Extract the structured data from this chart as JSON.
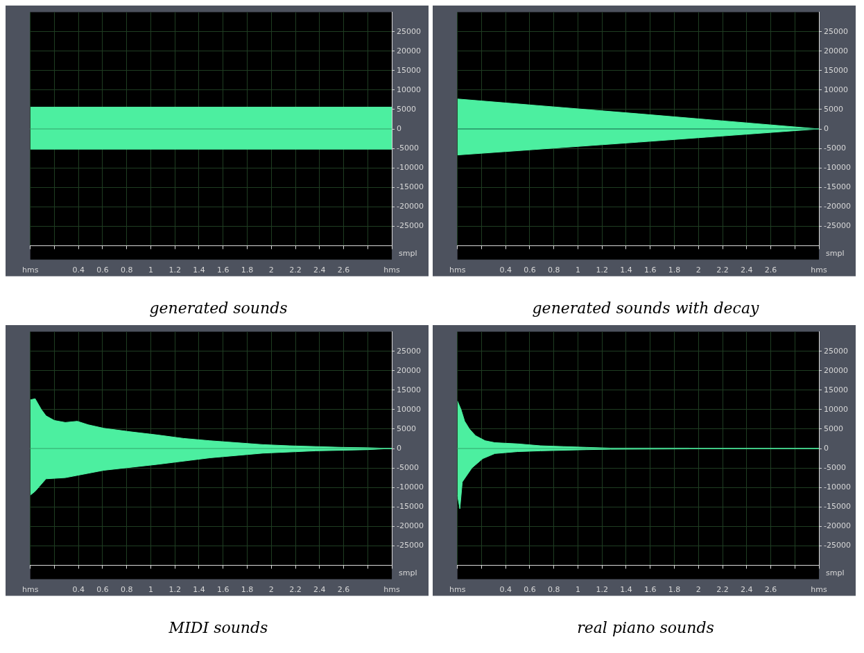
{
  "chart_data": [
    {
      "type": "area",
      "title": "generated sounds",
      "ylabel": "smpl",
      "xlim": [
        0,
        3
      ],
      "ylim": [
        -30000,
        30000
      ],
      "grid": true,
      "xticks": [
        {
          "value": 0,
          "label": "hms"
        },
        {
          "value": 0.2,
          "label": null
        },
        0.4,
        0.6,
        0.8,
        1.0,
        1.2,
        1.4,
        1.6,
        1.8,
        2.0,
        2.2,
        2.4,
        2.6,
        {
          "value": 2.8,
          "label": null
        },
        {
          "value": 3,
          "label": "hms"
        }
      ],
      "yticks": [
        -25000,
        -20000,
        -15000,
        -10000,
        -5000,
        0,
        5000,
        10000,
        15000,
        20000,
        25000
      ],
      "ref_lines": [
        {
          "axis": "y",
          "value": 0,
          "color": "#3fc985"
        }
      ],
      "series": [
        {
          "color": "#4cefa0",
          "x": [
            0,
            3
          ],
          "values": [
            5600,
            5600
          ]
        },
        {
          "color": "#4cefa0",
          "x": [
            0,
            3
          ],
          "values": [
            -5200,
            -5200
          ]
        }
      ]
    },
    {
      "type": "area",
      "title": "generated sounds with decay",
      "ylabel": "smpl",
      "xlim": [
        0,
        3
      ],
      "ylim": [
        -30000,
        30000
      ],
      "grid": true,
      "xticks": [
        {
          "value": 0,
          "label": "hms"
        },
        {
          "value": 0.2,
          "label": null
        },
        0.4,
        0.6,
        0.8,
        1.0,
        1.2,
        1.4,
        1.6,
        1.8,
        2.0,
        2.2,
        2.4,
        2.6,
        {
          "value": 2.8,
          "label": null
        },
        {
          "value": 3,
          "label": "hms"
        }
      ],
      "yticks": [
        -25000,
        -20000,
        -15000,
        -10000,
        -5000,
        0,
        5000,
        10000,
        15000,
        20000,
        25000
      ],
      "ref_lines": [
        {
          "axis": "y",
          "value": 0,
          "color": "#2fa873"
        }
      ],
      "series": [
        {
          "color": "#4cefa0",
          "x": [
            0,
            1.5,
            3
          ],
          "values": [
            7700,
            3900,
            0
          ]
        },
        {
          "color": "#4cefa0",
          "x": [
            0,
            1.5,
            3
          ],
          "values": [
            -6700,
            -3400,
            0
          ]
        }
      ]
    },
    {
      "type": "area",
      "title": "MIDI sounds",
      "ylabel": "smpl",
      "xlim": [
        0,
        3
      ],
      "ylim": [
        -30000,
        30000
      ],
      "grid": true,
      "xticks": [
        {
          "value": 0,
          "label": "hms"
        },
        {
          "value": 0.2,
          "label": null
        },
        0.4,
        0.6,
        0.8,
        1.0,
        1.2,
        1.4,
        1.6,
        1.8,
        2.0,
        2.2,
        2.4,
        2.6,
        {
          "value": 2.8,
          "label": null
        },
        {
          "value": 3,
          "label": "hms"
        }
      ],
      "yticks": [
        -25000,
        -20000,
        -15000,
        -10000,
        -5000,
        0,
        5000,
        10000,
        15000,
        20000,
        25000
      ],
      "ref_lines": [
        {
          "axis": "y",
          "value": 0,
          "color": "#3fc985"
        }
      ],
      "series": [
        {
          "color": "#4cefa0",
          "x": [
            0,
            0.04,
            0.09,
            0.13,
            0.2,
            0.29,
            0.39,
            0.48,
            0.61,
            0.83,
            1.05,
            1.27,
            1.49,
            1.71,
            1.93,
            2.15,
            2.37,
            2.58,
            2.8,
            2.99
          ],
          "values": [
            12500,
            12800,
            10100,
            8400,
            7200,
            6700,
            7000,
            6100,
            5200,
            4300,
            3500,
            2600,
            2000,
            1500,
            1000,
            700,
            500,
            300,
            200,
            0
          ]
        },
        {
          "color": "#4cefa0",
          "x": [
            0,
            0.04,
            0.13,
            0.29,
            0.61,
            1.05,
            1.49,
            1.93,
            2.37,
            2.8,
            2.99
          ],
          "values": [
            -12000,
            -11000,
            -7800,
            -7500,
            -5600,
            -4100,
            -2400,
            -1200,
            -600,
            -300,
            0
          ]
        }
      ]
    },
    {
      "type": "area",
      "title": "real piano sounds",
      "ylabel": "smpl",
      "xlim": [
        0,
        3
      ],
      "ylim": [
        -30000,
        30000
      ],
      "grid": true,
      "xticks": [
        {
          "value": 0,
          "label": "hms"
        },
        {
          "value": 0.2,
          "label": null
        },
        0.4,
        0.6,
        0.8,
        1.0,
        1.2,
        1.4,
        1.6,
        1.8,
        2.0,
        2.2,
        2.4,
        2.6,
        {
          "value": 2.8,
          "label": null
        },
        {
          "value": 3,
          "label": "hms"
        }
      ],
      "yticks": [
        -25000,
        -20000,
        -15000,
        -10000,
        -5000,
        0,
        5000,
        10000,
        15000,
        20000,
        25000
      ],
      "ref_lines": [
        {
          "axis": "y",
          "value": 0,
          "color": "#3fc985"
        }
      ],
      "series": [
        {
          "color": "#4cefa0",
          "x": [
            0,
            0.03,
            0.06,
            0.1,
            0.15,
            0.23,
            0.31,
            0.5,
            0.69,
            0.88,
            1.07,
            1.27,
            1.92,
            1.95
          ],
          "values": [
            12200,
            10000,
            7000,
            5000,
            3300,
            2000,
            1500,
            1200,
            700,
            500,
            300,
            100,
            100,
            0
          ]
        },
        {
          "color": "#4cefa0",
          "x": [
            0,
            0.02,
            0.04,
            0.12,
            0.21,
            0.31,
            0.5,
            0.69,
            1.07,
            1.27,
            1.92,
            1.95
          ],
          "values": [
            -12000,
            -15500,
            -8600,
            -5000,
            -2600,
            -1300,
            -800,
            -600,
            -300,
            -200,
            -100,
            0
          ]
        }
      ]
    }
  ]
}
